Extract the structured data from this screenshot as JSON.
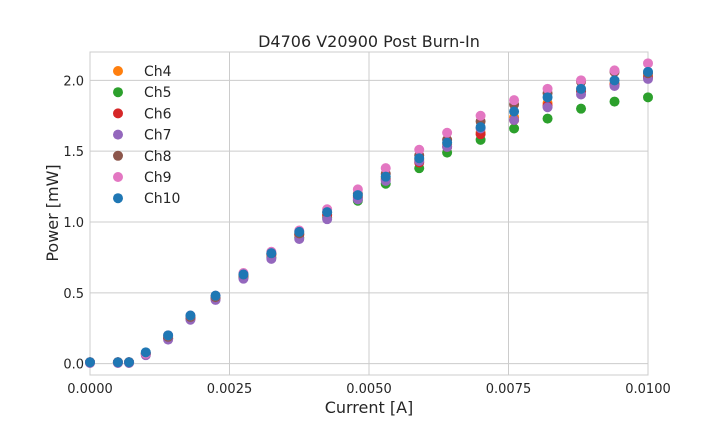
{
  "chart_data": {
    "type": "scatter",
    "title": "D4706 V20900 Post Burn-In",
    "xlabel": "Current [A]",
    "ylabel": "Power [mW]",
    "xlim": [
      0,
      0.01
    ],
    "ylim": [
      -0.08,
      2.2
    ],
    "xticks": [
      "0.0000",
      "0.0025",
      "0.0050",
      "0.0075",
      "0.0100"
    ],
    "yticks": [
      "0.0",
      "0.5",
      "1.0",
      "1.5",
      "2.0"
    ],
    "grid": true,
    "legend_position": "top-left",
    "x": [
      0,
      0.0005,
      0.0007,
      0.001,
      0.0014,
      0.0018,
      0.00225,
      0.00275,
      0.00325,
      0.00375,
      0.00425,
      0.0048,
      0.0053,
      0.0059,
      0.0064,
      0.007,
      0.0076,
      0.0082,
      0.0088,
      0.0094,
      0.01
    ],
    "series": [
      {
        "name": "Ch4",
        "color": "#ff7f0e",
        "values": [
          0.01,
          0.01,
          0.01,
          0.07,
          0.18,
          0.33,
          0.47,
          0.62,
          0.77,
          0.91,
          1.05,
          1.18,
          1.31,
          1.44,
          1.55,
          1.63,
          1.74,
          1.84,
          1.93,
          1.98,
          2.03
        ]
      },
      {
        "name": "Ch5",
        "color": "#2ca02c",
        "values": [
          0.01,
          0.01,
          0.01,
          0.07,
          0.18,
          0.32,
          0.46,
          0.61,
          0.75,
          0.89,
          1.03,
          1.15,
          1.27,
          1.38,
          1.49,
          1.58,
          1.66,
          1.73,
          1.8,
          1.85,
          1.88
        ]
      },
      {
        "name": "Ch6",
        "color": "#d62728",
        "values": [
          0.01,
          0.01,
          0.01,
          0.07,
          0.18,
          0.32,
          0.46,
          0.62,
          0.77,
          0.91,
          1.05,
          1.17,
          1.3,
          1.42,
          1.53,
          1.62,
          1.72,
          1.82,
          1.92,
          1.97,
          2.02
        ]
      },
      {
        "name": "Ch7",
        "color": "#9467bd",
        "values": [
          0.005,
          0.005,
          0.005,
          0.06,
          0.17,
          0.31,
          0.45,
          0.6,
          0.74,
          0.88,
          1.02,
          1.16,
          1.29,
          1.43,
          1.53,
          1.66,
          1.72,
          1.81,
          1.9,
          1.96,
          2.01
        ]
      },
      {
        "name": "Ch8",
        "color": "#8c564b",
        "values": [
          0.01,
          0.01,
          0.01,
          0.07,
          0.19,
          0.33,
          0.47,
          0.63,
          0.78,
          0.92,
          1.07,
          1.2,
          1.34,
          1.47,
          1.58,
          1.71,
          1.83,
          1.91,
          1.99,
          2.06,
          2.05
        ]
      },
      {
        "name": "Ch9",
        "color": "#e377c2",
        "values": [
          0.01,
          0.01,
          0.01,
          0.07,
          0.2,
          0.34,
          0.48,
          0.64,
          0.79,
          0.94,
          1.09,
          1.23,
          1.38,
          1.51,
          1.63,
          1.75,
          1.86,
          1.94,
          2.0,
          2.07,
          2.12
        ]
      },
      {
        "name": "Ch10",
        "color": "#1f77b4",
        "values": [
          0.01,
          0.01,
          0.01,
          0.08,
          0.2,
          0.34,
          0.48,
          0.63,
          0.78,
          0.93,
          1.07,
          1.19,
          1.32,
          1.45,
          1.56,
          1.67,
          1.78,
          1.88,
          1.94,
          2.0,
          2.06
        ]
      }
    ]
  }
}
